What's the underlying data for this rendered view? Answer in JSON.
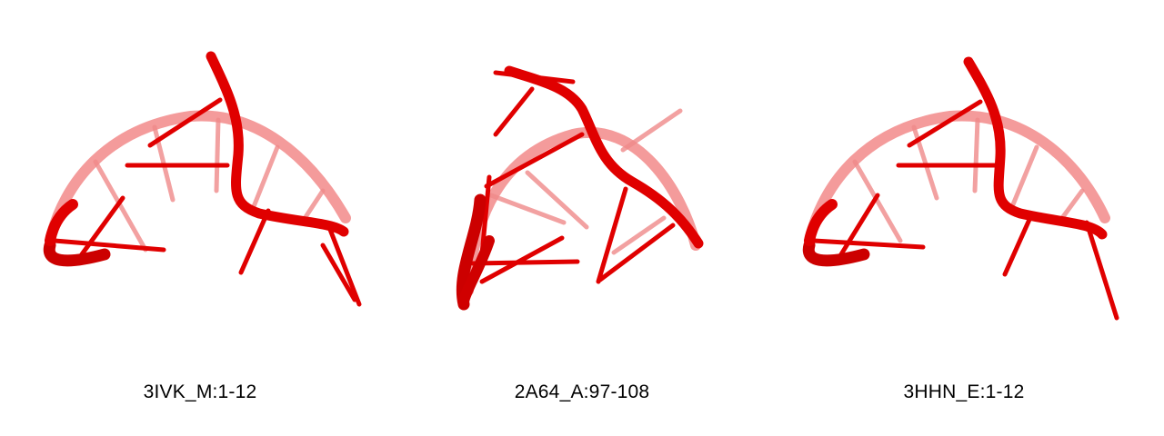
{
  "colors": {
    "backbone_front": "#e00000",
    "backbone_back": "#f07070",
    "rung_front": "#e00000",
    "rung_back": "#f08080"
  },
  "panels": [
    {
      "caption": "3IVK_M:1-12",
      "icon": "rna-ribbon-structure"
    },
    {
      "caption": "2A64_A:97-108",
      "icon": "rna-ribbon-structure"
    },
    {
      "caption": "3HHN_E:1-12",
      "icon": "rna-ribbon-structure"
    }
  ]
}
